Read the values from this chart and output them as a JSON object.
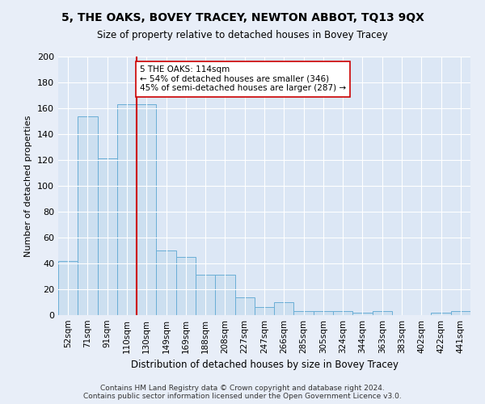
{
  "title": "5, THE OAKS, BOVEY TRACEY, NEWTON ABBOT, TQ13 9QX",
  "subtitle": "Size of property relative to detached houses in Bovey Tracey",
  "xlabel": "Distribution of detached houses by size in Bovey Tracey",
  "ylabel": "Number of detached properties",
  "categories": [
    "52sqm",
    "71sqm",
    "91sqm",
    "110sqm",
    "130sqm",
    "149sqm",
    "169sqm",
    "188sqm",
    "208sqm",
    "227sqm",
    "247sqm",
    "266sqm",
    "285sqm",
    "305sqm",
    "324sqm",
    "344sqm",
    "363sqm",
    "383sqm",
    "402sqm",
    "422sqm",
    "441sqm"
  ],
  "values": [
    42,
    154,
    121,
    163,
    163,
    50,
    45,
    31,
    31,
    14,
    6,
    10,
    3,
    3,
    3,
    2,
    3,
    0,
    0,
    2,
    3
  ],
  "bar_color": "#ccdff0",
  "bar_edge_color": "#6aaed6",
  "vline_index": 3,
  "vline_color": "#cc0000",
  "annotation_text": "5 THE OAKS: 114sqm\n← 54% of detached houses are smaller (346)\n45% of semi-detached houses are larger (287) →",
  "annotation_box_color": "#ffffff",
  "annotation_box_edge": "#cc0000",
  "ylim": [
    0,
    200
  ],
  "yticks": [
    0,
    20,
    40,
    60,
    80,
    100,
    120,
    140,
    160,
    180,
    200
  ],
  "footnote": "Contains HM Land Registry data © Crown copyright and database right 2024.\nContains public sector information licensed under the Open Government Licence v3.0.",
  "bg_color": "#e8eef8",
  "plot_bg_color": "#dce7f5"
}
